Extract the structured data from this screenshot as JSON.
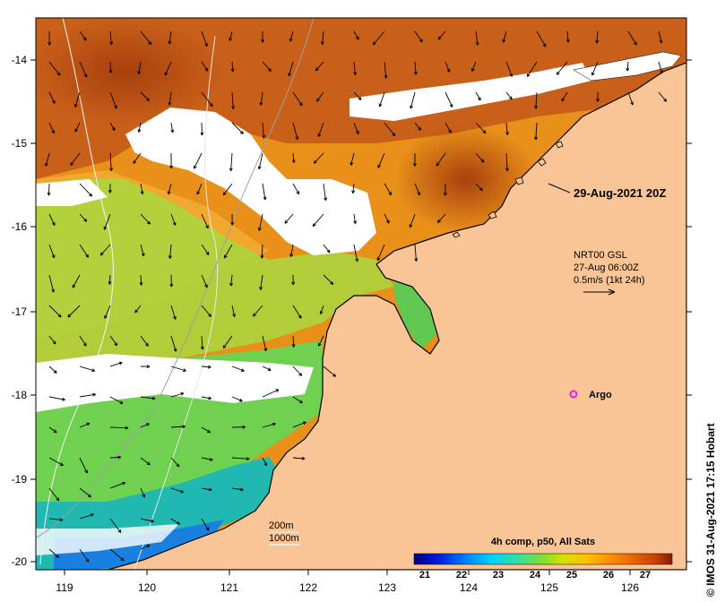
{
  "map": {
    "date_label": "29-Aug-2021 20Z",
    "current_legend": {
      "line1": "NRT00 GSL",
      "line2": "27-Aug 06:00Z",
      "line3": "0.5m/s (1kt 24h)"
    },
    "argo_label": "Argo",
    "isobaths": [
      "200m",
      "1000m"
    ],
    "colorbar": {
      "title": "4h comp, p50, All Sats",
      "ticks": [
        "21",
        "22",
        "23",
        "24",
        "25",
        "26",
        "27"
      ],
      "colors": [
        "#00007f",
        "#0018d8",
        "#0080ff",
        "#00d0ff",
        "#30e0a0",
        "#80e030",
        "#d8e000",
        "#ffc000",
        "#ff9000",
        "#e86000",
        "#c04000",
        "#8b1a00"
      ]
    },
    "credit": "© IMOS 31-Aug-2021 17:15 Hobart",
    "lon_ticks": [
      "119",
      "120",
      "121",
      "122",
      "123",
      "124",
      "125",
      "126"
    ],
    "lat_ticks": [
      "-14",
      "-15",
      "-16",
      "-17",
      "-18",
      "-19",
      "-20"
    ],
    "colors": {
      "land": "#f9c596",
      "no_data": "#ffffff",
      "warm": "#e07a10",
      "hot": "#b64a0e",
      "mid": "#f2b020",
      "cool": "#7ed44a",
      "cold": "#1aa0e0",
      "argo": "#e020e0"
    }
  }
}
